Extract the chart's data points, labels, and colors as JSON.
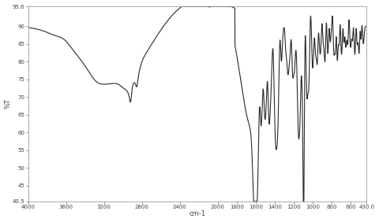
{
  "title": "",
  "xlabel": "cm-1",
  "ylabel": "%T",
  "xlim": [
    4000,
    430
  ],
  "ylim": [
    40.5,
    95.6
  ],
  "xticks": [
    4000,
    3600,
    3200,
    2800,
    2400,
    2000,
    1800,
    1600,
    1400,
    1200,
    1000,
    800,
    600,
    430
  ],
  "xtick_labels": [
    "4000",
    "3600",
    "3200",
    "2800",
    "2400",
    "2000",
    "1800",
    "1600",
    "1400",
    "1200",
    "1000",
    "800",
    "600",
    "430.0"
  ],
  "yticks": [
    40.5,
    45,
    50,
    55,
    60,
    65,
    70,
    75,
    80,
    85,
    90,
    95.6
  ],
  "ytick_labels": [
    "40.5",
    "45",
    "50",
    "55",
    "60",
    "65",
    "70",
    "75",
    "80",
    "85",
    "90",
    "95.6"
  ],
  "line_color": "#2a2a2a",
  "background_color": "#ffffff",
  "linewidth": 0.8
}
